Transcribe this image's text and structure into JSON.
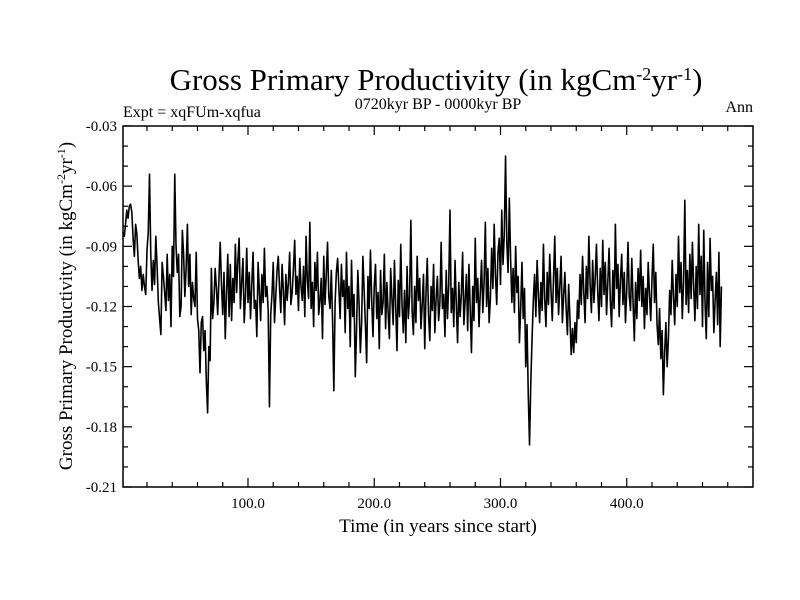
{
  "chart_data": {
    "type": "line",
    "title": "Gross Primary Productivity (in kgCm",
    "title_sup1": "-2",
    "title_mid": "yr",
    "title_sup2": "-1",
    "title_end": ")",
    "subtitle_left": "Expt = xqFUm-xqfua",
    "subtitle_center": "0720kyr BP - 0000kyr BP",
    "subtitle_right": "Ann",
    "xlabel": "Time (in years since start)",
    "ylabel_main": "Gross Primary Productivity (in kgCm",
    "ylabel_sup1": "-2",
    "ylabel_mid": "yr",
    "ylabel_sup2": "-1",
    "ylabel_end": ")",
    "xlim": [
      1,
      500
    ],
    "ylim": [
      -0.21,
      -0.03
    ],
    "xticks": [
      100,
      200,
      300,
      400
    ],
    "xtick_labels": [
      "100.0",
      "200.0",
      "300.0",
      "400.0"
    ],
    "yticks": [
      -0.03,
      -0.06,
      -0.09,
      -0.12,
      -0.15,
      -0.18,
      -0.21
    ],
    "ytick_labels": [
      "-0.03",
      "-0.06",
      "-0.09",
      "-0.12",
      "-0.15",
      "-0.18",
      "-0.21"
    ],
    "series": [
      {
        "name": "xqFUm-xqfua",
        "x_start": 1,
        "x_step": 1,
        "values": [
          -0.083,
          -0.085,
          -0.079,
          -0.072,
          -0.076,
          -0.07,
          -0.069,
          -0.073,
          -0.086,
          -0.095,
          -0.079,
          -0.084,
          -0.097,
          -0.106,
          -0.1,
          -0.112,
          -0.104,
          -0.11,
          -0.114,
          -0.092,
          -0.083,
          -0.054,
          -0.094,
          -0.112,
          -0.097,
          -0.109,
          -0.085,
          -0.1,
          -0.118,
          -0.126,
          -0.134,
          -0.098,
          -0.105,
          -0.113,
          -0.122,
          -0.094,
          -0.117,
          -0.104,
          -0.13,
          -0.09,
          -0.105,
          -0.054,
          -0.09,
          -0.103,
          -0.094,
          -0.125,
          -0.12,
          -0.082,
          -0.094,
          -0.115,
          -0.101,
          -0.079,
          -0.11,
          -0.094,
          -0.124,
          -0.108,
          -0.116,
          -0.12,
          -0.093,
          -0.126,
          -0.132,
          -0.153,
          -0.128,
          -0.125,
          -0.142,
          -0.132,
          -0.157,
          -0.173,
          -0.14,
          -0.147,
          -0.101,
          -0.126,
          -0.118,
          -0.101,
          -0.111,
          -0.124,
          -0.106,
          -0.088,
          -0.109,
          -0.124,
          -0.103,
          -0.136,
          -0.113,
          -0.094,
          -0.125,
          -0.099,
          -0.127,
          -0.106,
          -0.118,
          -0.089,
          -0.113,
          -0.097,
          -0.086,
          -0.121,
          -0.108,
          -0.096,
          -0.128,
          -0.115,
          -0.091,
          -0.118,
          -0.103,
          -0.126,
          -0.109,
          -0.093,
          -0.121,
          -0.117,
          -0.135,
          -0.098,
          -0.112,
          -0.127,
          -0.104,
          -0.118,
          -0.091,
          -0.115,
          -0.11,
          -0.122,
          -0.17,
          -0.124,
          -0.114,
          -0.098,
          -0.128,
          -0.115,
          -0.102,
          -0.095,
          -0.111,
          -0.123,
          -0.099,
          -0.112,
          -0.129,
          -0.104,
          -0.117,
          -0.108,
          -0.093,
          -0.119,
          -0.113,
          -0.101,
          -0.087,
          -0.114,
          -0.105,
          -0.122,
          -0.096,
          -0.11,
          -0.117,
          -0.1,
          -0.125,
          -0.085,
          -0.107,
          -0.116,
          -0.078,
          -0.121,
          -0.108,
          -0.13,
          -0.098,
          -0.112,
          -0.093,
          -0.124,
          -0.117,
          -0.106,
          -0.136,
          -0.095,
          -0.119,
          -0.104,
          -0.088,
          -0.115,
          -0.121,
          -0.102,
          -0.127,
          -0.162,
          -0.118,
          -0.103,
          -0.096,
          -0.111,
          -0.126,
          -0.099,
          -0.115,
          -0.107,
          -0.133,
          -0.093,
          -0.121,
          -0.11,
          -0.14,
          -0.097,
          -0.125,
          -0.114,
          -0.155,
          -0.131,
          -0.102,
          -0.119,
          -0.143,
          -0.128,
          -0.095,
          -0.112,
          -0.129,
          -0.148,
          -0.105,
          -0.121,
          -0.092,
          -0.117,
          -0.135,
          -0.11,
          -0.099,
          -0.126,
          -0.113,
          -0.141,
          -0.102,
          -0.124,
          -0.118,
          -0.094,
          -0.131,
          -0.108,
          -0.123,
          -0.136,
          -0.101,
          -0.116,
          -0.129,
          -0.097,
          -0.12,
          -0.142,
          -0.107,
          -0.125,
          -0.089,
          -0.119,
          -0.133,
          -0.112,
          -0.138,
          -0.1,
          -0.126,
          -0.115,
          -0.077,
          -0.122,
          -0.134,
          -0.11,
          -0.128,
          -0.095,
          -0.117,
          -0.106,
          -0.131,
          -0.119,
          -0.104,
          -0.141,
          -0.113,
          -0.096,
          -0.124,
          -0.137,
          -0.11,
          -0.122,
          -0.099,
          -0.133,
          -0.116,
          -0.105,
          -0.127,
          -0.118,
          -0.088,
          -0.121,
          -0.114,
          -0.135,
          -0.102,
          -0.126,
          -0.109,
          -0.072,
          -0.123,
          -0.111,
          -0.13,
          -0.097,
          -0.119,
          -0.138,
          -0.108,
          -0.125,
          -0.114,
          -0.093,
          -0.129,
          -0.117,
          -0.104,
          -0.132,
          -0.099,
          -0.121,
          -0.143,
          -0.11,
          -0.127,
          -0.086,
          -0.118,
          -0.106,
          -0.13,
          -0.113,
          -0.097,
          -0.123,
          -0.108,
          -0.078,
          -0.12,
          -0.101,
          -0.128,
          -0.116,
          -0.091,
          -0.111,
          -0.079,
          -0.104,
          -0.119,
          -0.093,
          -0.086,
          -0.109,
          -0.072,
          -0.099,
          -0.084,
          -0.045,
          -0.088,
          -0.103,
          -0.066,
          -0.096,
          -0.118,
          -0.101,
          -0.123,
          -0.09,
          -0.113,
          -0.105,
          -0.138,
          -0.121,
          -0.098,
          -0.126,
          -0.111,
          -0.15,
          -0.129,
          -0.164,
          -0.189,
          -0.158,
          -0.136,
          -0.117,
          -0.104,
          -0.125,
          -0.097,
          -0.114,
          -0.128,
          -0.108,
          -0.122,
          -0.089,
          -0.116,
          -0.13,
          -0.103,
          -0.119,
          -0.094,
          -0.112,
          -0.127,
          -0.106,
          -0.085,
          -0.118,
          -0.101,
          -0.124,
          -0.11,
          -0.095,
          -0.128,
          -0.115,
          -0.103,
          -0.121,
          -0.134,
          -0.109,
          -0.126,
          -0.144,
          -0.131,
          -0.143,
          -0.128,
          -0.138,
          -0.117,
          -0.126,
          -0.104,
          -0.119,
          -0.095,
          -0.113,
          -0.128,
          -0.1,
          -0.116,
          -0.085,
          -0.109,
          -0.123,
          -0.097,
          -0.118,
          -0.106,
          -0.089,
          -0.112,
          -0.127,
          -0.101,
          -0.12,
          -0.087,
          -0.114,
          -0.098,
          -0.124,
          -0.108,
          -0.091,
          -0.117,
          -0.13,
          -0.102,
          -0.121,
          -0.079,
          -0.111,
          -0.099,
          -0.125,
          -0.107,
          -0.094,
          -0.119,
          -0.103,
          -0.128,
          -0.112,
          -0.088,
          -0.115,
          -0.122,
          -0.096,
          -0.118,
          -0.137,
          -0.108,
          -0.126,
          -0.101,
          -0.117,
          -0.092,
          -0.12,
          -0.105,
          -0.131,
          -0.111,
          -0.124,
          -0.098,
          -0.114,
          -0.127,
          -0.106,
          -0.089,
          -0.118,
          -0.103,
          -0.129,
          -0.139,
          -0.121,
          -0.146,
          -0.132,
          -0.164,
          -0.143,
          -0.128,
          -0.15,
          -0.136,
          -0.112,
          -0.124,
          -0.097,
          -0.115,
          -0.129,
          -0.104,
          -0.12,
          -0.085,
          -0.113,
          -0.098,
          -0.126,
          -0.108,
          -0.067,
          -0.119,
          -0.102,
          -0.123,
          -0.094,
          -0.116,
          -0.088,
          -0.11,
          -0.127,
          -0.1,
          -0.121,
          -0.079,
          -0.114,
          -0.095,
          -0.13,
          -0.082,
          -0.118,
          -0.136,
          -0.098,
          -0.125,
          -0.086,
          -0.112,
          -0.105,
          -0.133,
          -0.117,
          -0.103,
          -0.129,
          -0.093,
          -0.14,
          -0.11
        ]
      }
    ]
  }
}
